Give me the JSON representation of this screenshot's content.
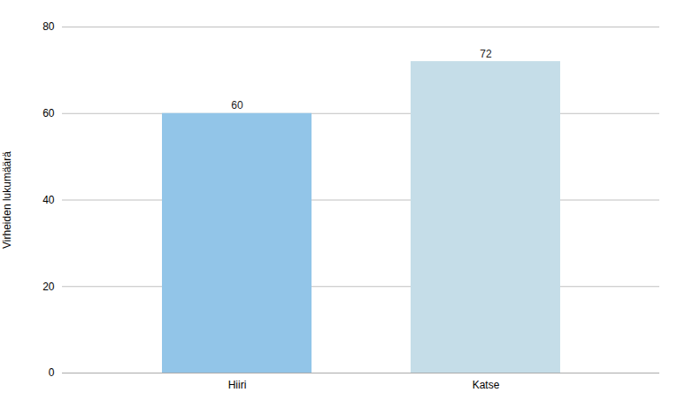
{
  "chart_data": {
    "type": "bar",
    "categories": [
      "Hiiri",
      "Katse"
    ],
    "values": [
      60,
      72
    ],
    "colors": [
      "#92C5E8",
      "#C5DDE8"
    ],
    "ylabel": "Virheiden lukumäärä",
    "ylim": [
      0,
      80
    ],
    "yticks": [
      0,
      20,
      40,
      60,
      80
    ],
    "grid": true,
    "data_labels": true
  }
}
